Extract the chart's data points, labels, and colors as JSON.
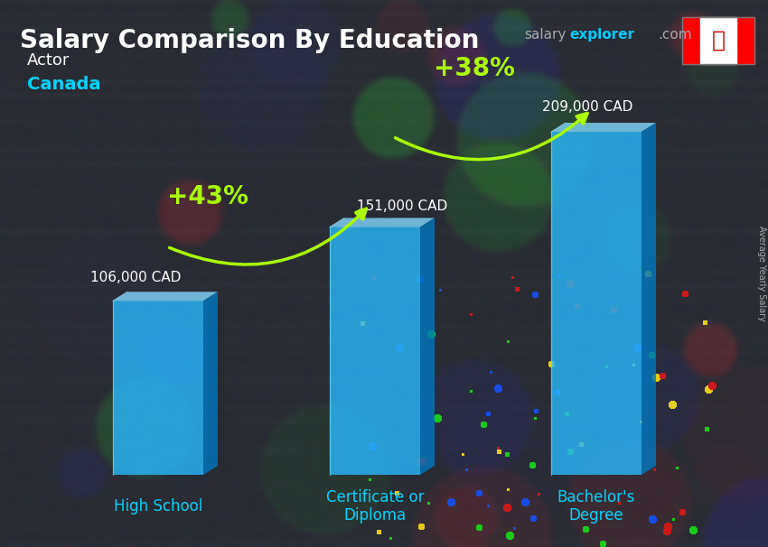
{
  "title": "Salary Comparison By Education",
  "subtitle_job": "Actor",
  "subtitle_location": "Canada",
  "ylabel": "Average Yearly Salary",
  "website_text_salary": "salary",
  "website_text_explorer": "explorer",
  "website_text_com": ".com",
  "categories": [
    "High School",
    "Certificate or\nDiploma",
    "Bachelor's\nDegree"
  ],
  "values": [
    106000,
    151000,
    209000
  ],
  "value_labels": [
    "106,000 CAD",
    "151,000 CAD",
    "209,000 CAD"
  ],
  "pct_labels": [
    "+43%",
    "+38%"
  ],
  "bar_front_color": "#29b6f6",
  "bar_top_color": "#81d4fa",
  "bar_side_color": "#0277bd",
  "bar_alpha": 0.82,
  "background_dark": "#1a1a2e",
  "title_color": "#ffffff",
  "subtitle_job_color": "#ffffff",
  "subtitle_location_color": "#00d4ff",
  "value_label_color": "#ffffff",
  "pct_label_color": "#aaff00",
  "arrow_color": "#aaff00",
  "xlabel_color": "#00d4ff",
  "ylabel_color": "#aaaaaa",
  "website_salary_color": "#aaaaaa",
  "website_explorer_color": "#00ccff",
  "figsize": [
    8.5,
    6.06
  ],
  "dpi": 100
}
